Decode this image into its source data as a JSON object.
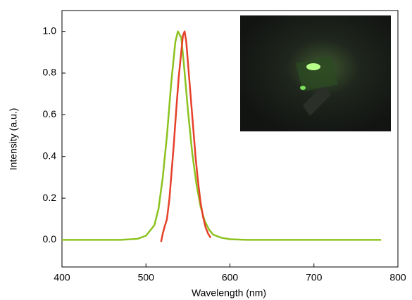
{
  "chart_data": {
    "type": "line",
    "xlabel": "Wavelength (nm)",
    "ylabel": "Intensity (a.u.)",
    "xlim": [
      400,
      800
    ],
    "xticks": [
      400,
      500,
      600,
      700,
      800
    ],
    "ylim": [
      -0.13,
      1.1
    ],
    "yticks": [
      {
        "value": 0,
        "label": "0.0"
      },
      0.2,
      0.4,
      0.6,
      0.8,
      {
        "value": 1,
        "label": "1.0"
      }
    ],
    "series": [
      {
        "color": "#8cc21f",
        "x": [
          400,
          470,
          490,
          500,
          510,
          515,
          520,
          525,
          530,
          535,
          538,
          542,
          545,
          550,
          555,
          560,
          565,
          570,
          575,
          580,
          590,
          600,
          620,
          700,
          780
        ],
        "values": [
          0,
          0,
          0.005,
          0.02,
          0.07,
          0.15,
          0.3,
          0.5,
          0.75,
          0.95,
          1.0,
          0.97,
          0.85,
          0.62,
          0.42,
          0.27,
          0.16,
          0.09,
          0.05,
          0.025,
          0.01,
          0.003,
          0,
          0,
          0
        ]
      },
      {
        "color": "#e6402a",
        "x": [
          518,
          520,
          522,
          525,
          528,
          530,
          533,
          536,
          539,
          542,
          544,
          546,
          548,
          550,
          553,
          556,
          559,
          562,
          565,
          568,
          571,
          574,
          577
        ],
        "values": [
          -0.01,
          0.03,
          0.06,
          0.1,
          0.2,
          0.3,
          0.45,
          0.62,
          0.78,
          0.9,
          0.98,
          1.0,
          0.95,
          0.85,
          0.7,
          0.55,
          0.4,
          0.28,
          0.18,
          0.11,
          0.06,
          0.03,
          0.01
        ]
      }
    ]
  }
}
